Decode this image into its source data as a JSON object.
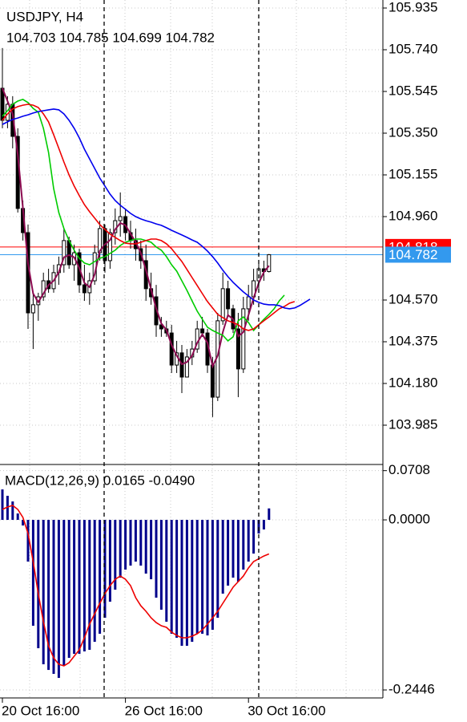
{
  "chart_data": [
    {
      "type": "candlestick",
      "title": "USDJPY, H4",
      "subtitle": "104.703 104.785 104.699 104.782",
      "categories": [
        "20 Oct 16:00",
        null,
        null,
        null,
        null,
        null,
        null,
        null,
        null,
        null,
        null,
        null,
        null,
        null,
        null,
        null,
        null,
        null,
        null,
        null,
        null,
        null,
        null,
        null,
        "26 Oct 16:00",
        null,
        null,
        null,
        null,
        null,
        null,
        null,
        null,
        null,
        null,
        null,
        null,
        null,
        null,
        null,
        null,
        null,
        null,
        null,
        null,
        null,
        null,
        null,
        "30 Oct 16:00",
        null,
        null,
        null,
        null,
        null,
        null,
        null,
        null,
        null,
        null,
        null,
        null
      ],
      "open": [
        105.56,
        105.41,
        105.485,
        105.335,
        104.998,
        104.885,
        104.51,
        104.548,
        104.585,
        104.66,
        104.623,
        104.698,
        104.735,
        104.848,
        104.735,
        104.791,
        104.641,
        104.604,
        104.66,
        104.791,
        104.904,
        104.754,
        104.885,
        104.941,
        104.96,
        104.885,
        104.848,
        104.81,
        104.754,
        104.623,
        104.585,
        104.454,
        104.435,
        104.416,
        104.266,
        104.323,
        104.21,
        104.304,
        104.341,
        104.435,
        104.416,
        104.266,
        104.116,
        104.473,
        104.623,
        104.529,
        104.435,
        104.248,
        104.529,
        104.585,
        104.66,
        104.716,
        104.703,
        null,
        null,
        null,
        null,
        null,
        null,
        null,
        null
      ],
      "high": [
        105.748,
        105.523,
        105.523,
        105.373,
        105.035,
        104.923,
        104.604,
        104.604,
        104.698,
        104.716,
        104.735,
        104.773,
        104.904,
        104.866,
        104.829,
        104.81,
        104.735,
        104.698,
        104.829,
        104.941,
        104.923,
        104.904,
        104.998,
        105.073,
        104.998,
        104.941,
        104.904,
        104.848,
        104.829,
        104.698,
        104.641,
        104.491,
        104.473,
        104.454,
        104.379,
        104.36,
        104.341,
        104.379,
        104.473,
        104.491,
        104.435,
        104.304,
        104.51,
        104.698,
        104.66,
        104.548,
        104.51,
        104.585,
        104.641,
        104.716,
        104.754,
        104.754,
        104.785,
        null,
        null,
        null,
        null,
        null,
        null,
        null,
        null
      ],
      "low": [
        105.373,
        105.373,
        105.279,
        104.979,
        104.848,
        104.435,
        104.341,
        104.473,
        104.566,
        104.604,
        104.604,
        104.641,
        104.698,
        104.716,
        104.66,
        104.604,
        104.566,
        104.548,
        104.641,
        104.754,
        104.698,
        104.716,
        104.829,
        104.866,
        104.848,
        104.81,
        104.754,
        104.716,
        104.566,
        104.548,
        104.398,
        104.398,
        104.398,
        104.229,
        104.229,
        104.135,
        104.21,
        104.266,
        104.323,
        104.398,
        104.229,
        104.023,
        104.098,
        104.454,
        104.491,
        104.416,
        104.116,
        104.229,
        104.473,
        104.548,
        104.623,
        104.66,
        104.699,
        null,
        null,
        null,
        null,
        null,
        null,
        null,
        null
      ],
      "close": [
        105.41,
        105.485,
        105.335,
        104.998,
        104.885,
        104.51,
        104.548,
        104.585,
        104.66,
        104.623,
        104.698,
        104.735,
        104.848,
        104.735,
        104.791,
        104.641,
        104.604,
        104.66,
        104.791,
        104.904,
        104.754,
        104.885,
        104.941,
        104.96,
        104.885,
        104.848,
        104.81,
        104.754,
        104.623,
        104.585,
        104.454,
        104.435,
        104.416,
        104.266,
        104.323,
        104.21,
        104.304,
        104.341,
        104.435,
        104.416,
        104.266,
        104.116,
        104.473,
        104.623,
        104.529,
        104.435,
        104.248,
        104.529,
        104.585,
        104.66,
        104.716,
        104.703,
        104.782,
        null,
        null,
        null,
        null,
        null,
        null,
        null,
        null
      ],
      "series": [
        {
          "color": "#8b0a50",
          "values": [
            105.56,
            105.5,
            105.44,
            105.25,
            105.0,
            104.74,
            104.6,
            104.56,
            104.6,
            104.64,
            104.66,
            104.7,
            104.77,
            104.78,
            104.77,
            104.72,
            104.65,
            104.63,
            104.69,
            104.8,
            104.83,
            104.85,
            104.9,
            104.93,
            104.92,
            104.88,
            104.84,
            104.79,
            104.71,
            104.62,
            104.53,
            104.46,
            104.43,
            104.36,
            104.31,
            104.27,
            104.28,
            104.31,
            104.37,
            104.41,
            104.37,
            104.26,
            104.31,
            104.42,
            104.5,
            104.48,
            104.4,
            104.42,
            104.5,
            104.58,
            104.65,
            104.7,
            104.73,
            null,
            null,
            null,
            null,
            null,
            null,
            null,
            null
          ]
        },
        {
          "color": "#00cc00",
          "values": [
            105.429,
            105.455,
            105.485,
            105.5,
            105.508,
            105.493,
            105.466,
            105.448,
            105.373,
            105.26,
            105.091,
            104.979,
            104.904,
            104.848,
            104.803,
            104.765,
            104.743,
            104.735,
            104.75,
            104.765,
            104.773,
            104.788,
            104.803,
            104.825,
            104.84,
            104.848,
            104.855,
            104.855,
            104.848,
            104.84,
            104.818,
            104.803,
            104.773,
            104.735,
            104.705,
            104.66,
            104.615,
            104.566,
            104.518,
            104.48,
            104.443,
            104.428,
            104.416,
            104.405,
            104.379,
            104.398,
            104.473,
            104.491,
            104.465,
            104.428,
            104.454,
            104.48,
            104.503,
            104.529,
            104.566,
            104.593,
            null,
            null,
            null,
            null,
            null
          ]
        },
        {
          "color": "#ee0000",
          "values": [
            105.41,
            105.44,
            105.463,
            105.474,
            105.481,
            105.485,
            105.481,
            105.47,
            105.44,
            105.403,
            105.343,
            105.279,
            105.215,
            105.155,
            105.103,
            105.058,
            105.016,
            104.983,
            104.953,
            104.923,
            104.9,
            104.878,
            104.863,
            104.848,
            104.836,
            104.833,
            104.833,
            104.84,
            104.848,
            104.855,
            104.855,
            104.848,
            104.833,
            104.81,
            104.78,
            104.75,
            104.713,
            104.675,
            104.638,
            104.6,
            104.563,
            104.533,
            104.503,
            104.488,
            104.473,
            104.465,
            104.454,
            104.435,
            104.428,
            104.435,
            104.454,
            104.473,
            104.491,
            104.51,
            104.529,
            104.54,
            104.555,
            104.563,
            null,
            null,
            null
          ]
        },
        {
          "color": "#0000ee",
          "values": [
            105.391,
            105.403,
            105.414,
            105.421,
            105.429,
            105.436,
            105.444,
            105.451,
            105.455,
            105.459,
            105.463,
            105.459,
            105.44,
            105.41,
            105.373,
            105.328,
            105.275,
            105.23,
            105.185,
            105.14,
            105.103,
            105.065,
            105.035,
            105.013,
            104.994,
            104.975,
            104.96,
            104.949,
            104.941,
            104.934,
            104.926,
            104.919,
            104.908,
            104.896,
            104.885,
            104.874,
            104.863,
            104.851,
            104.84,
            104.821,
            104.799,
            104.773,
            104.743,
            104.709,
            104.679,
            104.653,
            104.63,
            104.608,
            104.589,
            104.57,
            104.559,
            104.551,
            104.548,
            104.548,
            104.544,
            104.533,
            104.529,
            104.533,
            104.544,
            104.559,
            104.574
          ]
        }
      ],
      "price_lines": [
        {
          "value": 104.818,
          "color": "#ff0000"
        },
        {
          "value": 104.782,
          "color": "#3399ee"
        }
      ],
      "ylim": [
        103.805,
        105.9725
      ],
      "yticks": [
        105.935,
        {
          "value": 105.74,
          "label": "105.740"
        },
        105.545,
        {
          "value": 105.35,
          "label": "105.350"
        },
        105.155,
        {
          "value": 104.96,
          "label": "104.960"
        },
        {
          "value": 104.57,
          "label": "104.570"
        },
        104.375,
        {
          "value": 104.18,
          "label": "104.180"
        },
        103.985
      ],
      "grid": true
    },
    {
      "type": "macd",
      "title": "MACD(12,26,9) 0.0165 -0.0490",
      "values": [
        0.0438,
        0.0346,
        0.0265,
        0.0092,
        -0.0081,
        -0.06,
        -0.1523,
        -0.1846,
        -0.2077,
        -0.2158,
        -0.2215,
        -0.2273,
        -0.21,
        -0.1985,
        -0.1927,
        -0.1927,
        -0.1892,
        -0.1869,
        -0.1754,
        -0.1638,
        -0.1408,
        -0.1177,
        -0.1004,
        -0.0831,
        -0.0715,
        -0.0658,
        -0.06,
        -0.0658,
        -0.0773,
        -0.0854,
        -0.1119,
        -0.1292,
        -0.1465,
        -0.1638,
        -0.1696,
        -0.1811,
        -0.1811,
        -0.1754,
        -0.1638,
        -0.1638,
        -0.1662,
        -0.1581,
        -0.1408,
        -0.1061,
        -0.0946,
        -0.0831,
        -0.0888,
        -0.0715,
        -0.06,
        -0.0485,
        -0.0196,
        -0.0138,
        0.0165,
        null,
        null,
        null,
        null,
        null,
        null,
        null,
        null
      ],
      "color": "#00008b",
      "signal": [
        0.015,
        0.0185,
        0.0208,
        0.015,
        0.0035,
        -0.0196,
        -0.06,
        -0.1061,
        -0.1465,
        -0.1811,
        -0.1985,
        -0.2077,
        -0.21,
        -0.2054,
        -0.1961,
        -0.1869,
        -0.1696,
        -0.15,
        -0.135,
        -0.12,
        -0.1061,
        -0.0946,
        -0.0854,
        -0.0808,
        -0.0854,
        -0.0946,
        -0.1119,
        -0.1235,
        -0.1315,
        -0.1408,
        -0.1477,
        -0.1523,
        -0.1546,
        -0.1615,
        -0.1662,
        -0.1696,
        -0.1696,
        -0.1673,
        -0.1638,
        -0.1581,
        -0.15,
        -0.1408,
        -0.1315,
        -0.12,
        -0.1085,
        -0.0969,
        -0.0888,
        -0.0808,
        -0.0692,
        -0.06,
        -0.056,
        -0.052,
        -0.049,
        null,
        null,
        null,
        null,
        null,
        null,
        null,
        null
      ],
      "signal_color": "#ee0000",
      "ylim": [
        -0.2561,
        0.0762
      ],
      "yticks": [
        0.0708,
        {
          "value": 0,
          "label": "0.0000"
        },
        -0.2446
      ],
      "grid": true
    }
  ]
}
